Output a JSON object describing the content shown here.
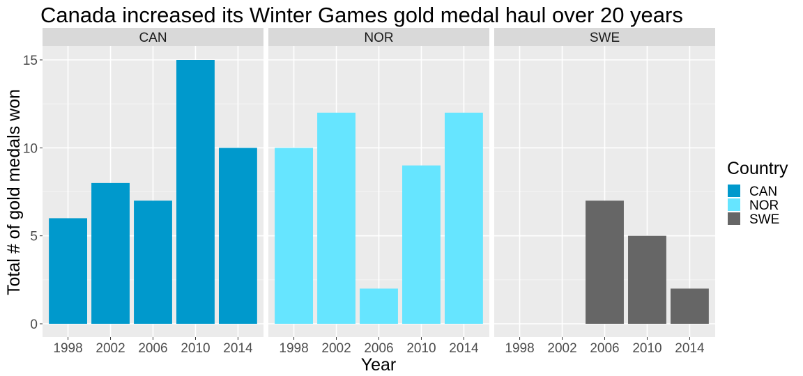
{
  "chart_data": {
    "type": "bar",
    "title": "Canada increased its Winter Games gold medal haul over 20 years",
    "xlabel": "Year",
    "ylabel": "Total # of gold medals won",
    "categories": [
      "1998",
      "2002",
      "2006",
      "2010",
      "2014"
    ],
    "ylim": [
      0,
      16
    ],
    "yticks": [
      0,
      5,
      10,
      15
    ],
    "grid": true,
    "legend": {
      "title": "Country",
      "position": "right"
    },
    "facets": [
      {
        "name": "CAN",
        "color": "#0099CC",
        "values": [
          6,
          8,
          7,
          15,
          10
        ]
      },
      {
        "name": "NOR",
        "color": "#66E5FF",
        "values": [
          10,
          12,
          2,
          9,
          12
        ]
      },
      {
        "name": "SWE",
        "color": "#666666",
        "values": [
          null,
          null,
          7,
          5,
          2
        ]
      }
    ]
  }
}
